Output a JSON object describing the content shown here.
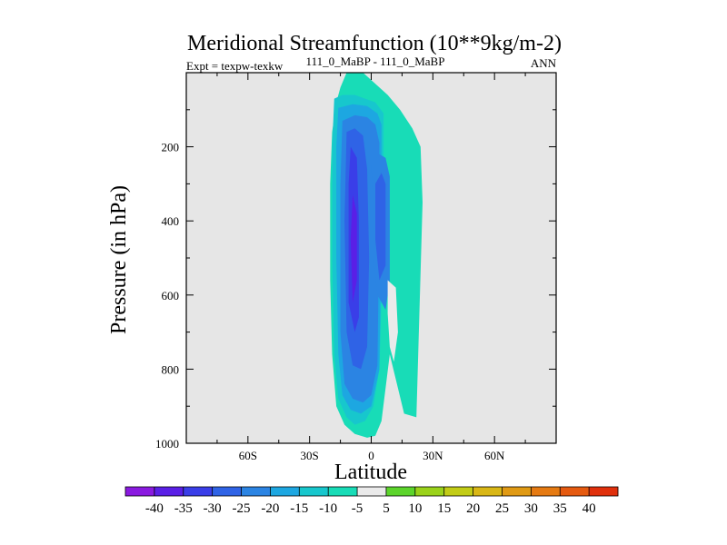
{
  "chart_data": {
    "type": "contour",
    "title": "Meridional Streamfunction (10**9kg/m-2)",
    "subtitle_left": "Expt = texpw-texkw",
    "subtitle_center": "111_0_MaBP - 111_0_MaBP",
    "subtitle_right": "ANN",
    "xlabel": "Latitude",
    "ylabel": "Pressure (in hPa)",
    "xlim": [
      -90,
      90
    ],
    "ylim": [
      1000,
      0
    ],
    "xticks": [
      {
        "value": -60,
        "label": "60S"
      },
      {
        "value": -30,
        "label": "30S"
      },
      {
        "value": 0,
        "label": "0"
      },
      {
        "value": 30,
        "label": "30N"
      },
      {
        "value": 60,
        "label": "60N"
      }
    ],
    "yticks": [
      {
        "value": 200,
        "label": "200"
      },
      {
        "value": 400,
        "label": "400"
      },
      {
        "value": 600,
        "label": "600"
      },
      {
        "value": 800,
        "label": "800"
      },
      {
        "value": 1000,
        "label": "1000"
      }
    ],
    "colorbar": {
      "labels": [
        "-40",
        "-35",
        "-30",
        "-25",
        "-20",
        "-15",
        "-10",
        "-5",
        "5",
        "10",
        "15",
        "20",
        "25",
        "30",
        "35",
        "40"
      ],
      "colors": [
        "#8a1ae0",
        "#5a1fe6",
        "#3a3ee8",
        "#2f63e6",
        "#2b84e3",
        "#1da7e1",
        "#17c7cd",
        "#18dcb7",
        "#eaeaea",
        "#5cd42b",
        "#9ad21a",
        "#c2cc16",
        "#d9b716",
        "#e09a14",
        "#e57a12",
        "#e55a10",
        "#e0300c"
      ]
    },
    "regions": [
      {
        "level": "-10",
        "color": "#18dcb7",
        "lat": [
          -12,
          -4,
          8,
          14,
          20,
          24,
          25,
          22,
          16,
          9,
          5,
          2,
          -2,
          -8,
          -13,
          -17,
          -19,
          -20,
          -20,
          -19,
          -17,
          -15,
          -12
        ],
        "p": [
          0,
          0,
          60,
          100,
          150,
          200,
          350,
          930,
          920,
          760,
          940,
          980,
          985,
          975,
          950,
          900,
          760,
          560,
          300,
          160,
          80,
          40,
          0
        ]
      },
      {
        "level": "-15",
        "color": "#17c7cd",
        "lat": [
          -18,
          -14,
          -8,
          -3,
          2,
          6,
          6,
          4,
          1,
          -3,
          -8,
          -12,
          -16,
          -18,
          -19,
          -19
        ],
        "p": [
          70,
          60,
          60,
          70,
          80,
          110,
          400,
          800,
          900,
          940,
          950,
          930,
          880,
          760,
          500,
          200
        ]
      },
      {
        "level": "-20",
        "color": "#1da7e1",
        "lat": [
          -16,
          -9,
          -2,
          3,
          5,
          5,
          4,
          0,
          -5,
          -10,
          -14,
          -16,
          -17,
          -17
        ],
        "p": [
          95,
          85,
          90,
          110,
          140,
          400,
          800,
          900,
          920,
          910,
          870,
          760,
          500,
          200
        ]
      },
      {
        "level": "-25",
        "color": "#2b84e3",
        "lat": [
          -14,
          -8,
          -2,
          2,
          4,
          4,
          3,
          0,
          -4,
          -9,
          -13,
          -15,
          -15
        ],
        "p": [
          130,
          115,
          120,
          140,
          190,
          400,
          790,
          870,
          890,
          880,
          840,
          700,
          300
        ]
      },
      {
        "level": "-30",
        "color": "#2f63e6",
        "lat": [
          -12,
          -8,
          -4,
          -2,
          -1,
          -2,
          -5,
          -9,
          -12,
          -13
        ],
        "p": [
          160,
          150,
          170,
          260,
          500,
          740,
          800,
          790,
          700,
          400
        ]
      },
      {
        "level": "-35",
        "color": "#3a3ee8",
        "lat": [
          -10,
          -7,
          -6,
          -6,
          -8,
          -11,
          -11
        ],
        "p": [
          200,
          230,
          400,
          660,
          700,
          620,
          300
        ]
      },
      {
        "level": "-40",
        "color": "#5a1fe6",
        "lat": [
          -9,
          -7,
          -7,
          -9,
          -10
        ],
        "p": [
          330,
          380,
          560,
          620,
          450
        ]
      },
      {
        "level": "-25",
        "color": "#2b84e3",
        "lat": [
          0,
          4,
          7,
          9,
          9,
          7,
          3,
          1,
          1
        ],
        "p": [
          250,
          220,
          230,
          280,
          560,
          640,
          600,
          500,
          350
        ]
      },
      {
        "level": "-30",
        "color": "#2f63e6",
        "lat": [
          2,
          5,
          7,
          7,
          4,
          2
        ],
        "p": [
          300,
          270,
          300,
          520,
          560,
          450
        ]
      },
      {
        "level": "-5",
        "color": "#eaeaea",
        "lat": [
          8,
          12,
          13,
          11,
          9,
          8
        ],
        "p": [
          560,
          580,
          700,
          780,
          740,
          650
        ]
      }
    ]
  }
}
